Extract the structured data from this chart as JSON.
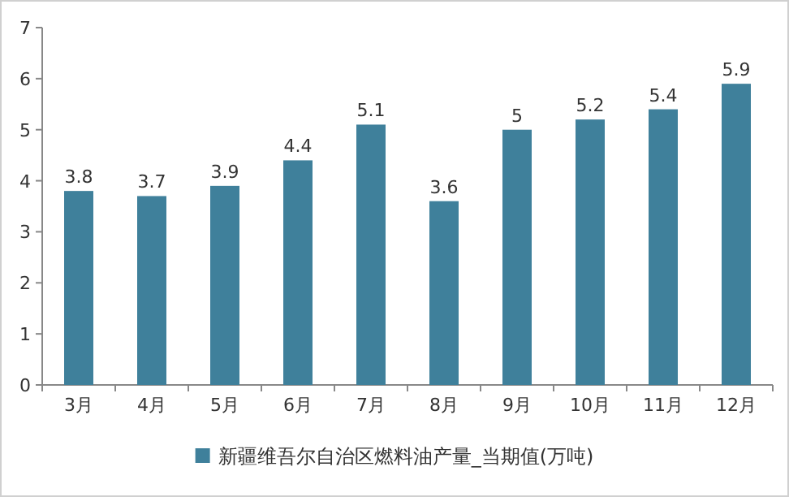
{
  "chart_data": {
    "type": "bar",
    "categories": [
      "3月",
      "4月",
      "5月",
      "6月",
      "7月",
      "8月",
      "9月",
      "10月",
      "11月",
      "12月"
    ],
    "series": [
      {
        "name": "新疆维吾尔自治区燃料油产量_当期值(万吨)",
        "color": "#3f809b",
        "values": [
          3.8,
          3.7,
          3.9,
          4.4,
          5.1,
          3.6,
          5,
          5.2,
          5.4,
          5.9
        ]
      }
    ],
    "ylim": [
      0,
      7
    ],
    "yticks": [
      0,
      1,
      2,
      3,
      4,
      5,
      6,
      7
    ],
    "data_labels": true,
    "legend": "bottom"
  }
}
